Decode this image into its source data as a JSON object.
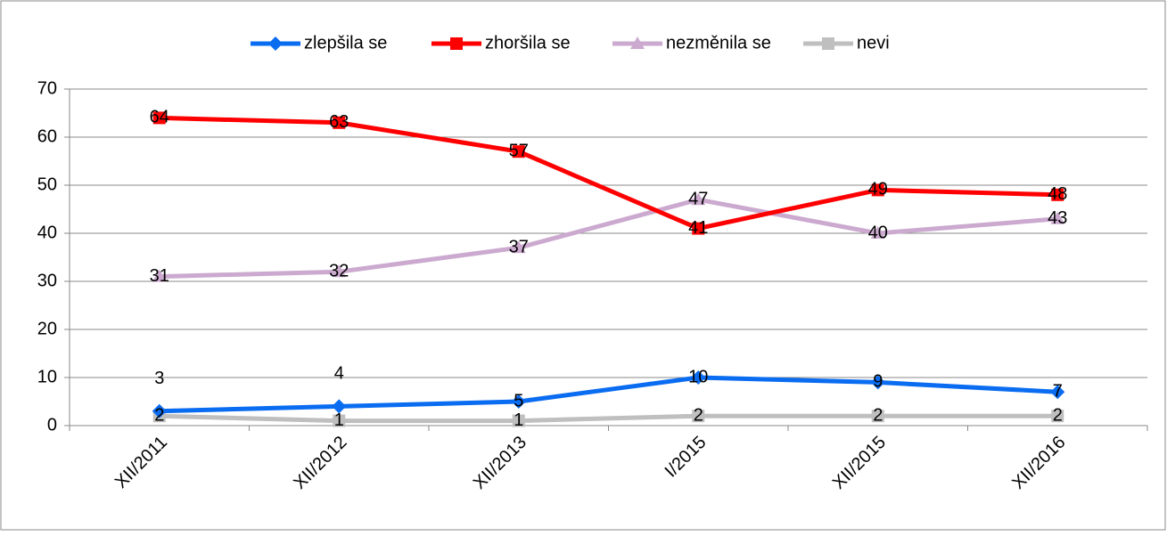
{
  "chart_data": {
    "type": "line",
    "categories": [
      "XII/2011",
      "XII/2012",
      "XII/2013",
      "I/2015",
      "XII/2015",
      "XII/2016"
    ],
    "series": [
      {
        "name": "zlepšila se",
        "color": "#0a6cf0",
        "marker": "diamond",
        "values": [
          3,
          4,
          5,
          10,
          9,
          7
        ]
      },
      {
        "name": "zhoršila se",
        "color": "#ff0000",
        "marker": "square",
        "values": [
          64,
          63,
          57,
          41,
          49,
          48
        ]
      },
      {
        "name": "nezměnila se",
        "color": "#ccaad0",
        "marker": "triangle",
        "values": [
          31,
          32,
          37,
          47,
          40,
          43
        ]
      },
      {
        "name": "nevi",
        "color": "#bfbfbf",
        "marker": "square",
        "values": [
          2,
          1,
          1,
          2,
          2,
          2
        ]
      }
    ],
    "ylim": [
      0,
      70
    ],
    "yticks": [
      0,
      10,
      20,
      30,
      40,
      50,
      60,
      70
    ],
    "grid": true,
    "legend": "top"
  }
}
